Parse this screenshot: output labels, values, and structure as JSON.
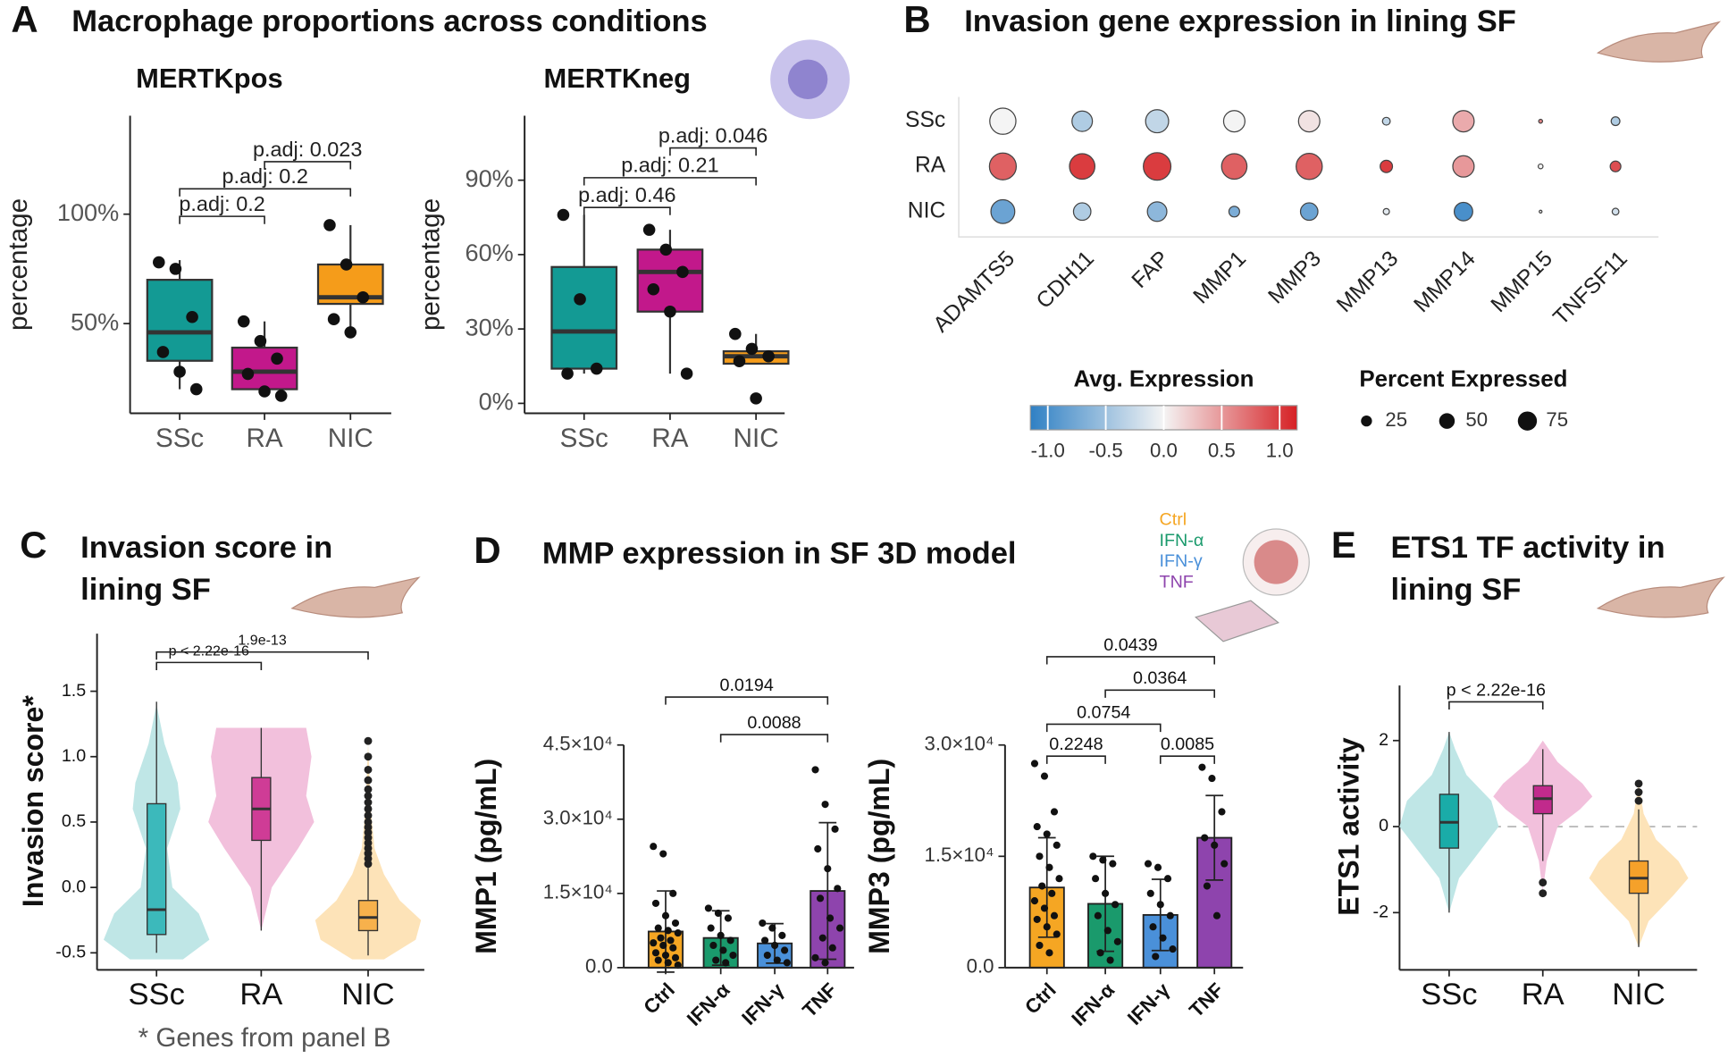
{
  "panels": [
    {
      "letter": "A",
      "title": "Macrophage proportions across conditions"
    },
    {
      "letter": "B",
      "title": "Invasion gene expression in lining SF"
    },
    {
      "letter": "C",
      "title": "Invasion score in lining SF"
    },
    {
      "letter": "D",
      "title": "MMP expression in SF 3D model"
    },
    {
      "letter": "E",
      "title": "ETS1 TF activity in lining SF"
    }
  ],
  "chart_data": [
    {
      "type": "box",
      "title": "MERTKpos",
      "ylabel": "percentage",
      "categories": [
        "SSc",
        "RA",
        "NIC"
      ],
      "colors": [
        "#139a94",
        "#c2188b",
        "#f59c1a"
      ],
      "boxes": [
        {
          "whislo": 20,
          "q1": 33,
          "median": 46,
          "q3": 70,
          "whishi": 79
        },
        {
          "whislo": 17,
          "q1": 20,
          "median": 28,
          "q3": 39,
          "whishi": 51
        },
        {
          "whislo": 46,
          "q1": 59,
          "median": 62,
          "q3": 77,
          "whishi": 95
        }
      ],
      "points": [
        [
          78,
          75,
          53,
          37,
          28,
          20
        ],
        [
          51,
          42,
          34,
          27,
          19,
          17
        ],
        [
          95,
          77,
          62,
          52,
          46
        ]
      ],
      "ylim": [
        9,
        145
      ],
      "yticks": [
        {
          "value": 50,
          "label": "50%"
        },
        {
          "value": 100,
          "label": "100%"
        }
      ],
      "annotations": [
        {
          "label": "p.adj: 0.2",
          "from": 0,
          "to": 1,
          "y": 99
        },
        {
          "label": "p.adj: 0.2",
          "from": 0,
          "to": 2,
          "y": 111.6
        },
        {
          "label": "p.adj: 0.023",
          "from": 1,
          "to": 2,
          "y": 124
        }
      ]
    },
    {
      "type": "box",
      "title": "MERTKneg",
      "ylabel": "percentage",
      "categories": [
        "SSc",
        "RA",
        "NIC"
      ],
      "colors": [
        "#139a94",
        "#c2188b",
        "#f59c1a"
      ],
      "boxes": [
        {
          "whislo": 12,
          "q1": 14,
          "median": 29,
          "q3": 55,
          "whishi": 76
        },
        {
          "whislo": 12,
          "q1": 37,
          "median": 53,
          "q3": 62,
          "whishi": 70
        },
        {
          "whislo": 16,
          "q1": 16,
          "median": 19,
          "q3": 21,
          "whishi": 28
        }
      ],
      "points": [
        [
          76,
          42,
          14,
          12
        ],
        [
          70,
          62,
          53,
          46,
          37,
          12
        ],
        [
          28,
          22,
          19,
          17,
          2
        ]
      ],
      "ylim": [
        -4,
        116
      ],
      "yticks": [
        {
          "value": 0,
          "label": "0%"
        },
        {
          "value": 30,
          "label": "30%"
        },
        {
          "value": 60,
          "label": "60%"
        },
        {
          "value": 90,
          "label": "90%"
        }
      ],
      "annotations": [
        {
          "label": "p.adj: 0.46",
          "from": 0,
          "to": 1,
          "y": 79
        },
        {
          "label": "p.adj: 0.21",
          "from": 0,
          "to": 2,
          "y": 91
        },
        {
          "label": "p.adj: 0.046",
          "from": 1,
          "to": 2,
          "y": 103
        }
      ]
    },
    {
      "type": "dot",
      "categories": [
        "ADAMTS5",
        "CDH11",
        "FAP",
        "MMP1",
        "MMP3",
        "MMP13",
        "MMP14",
        "MMP15",
        "TNFSF11"
      ],
      "series": [
        {
          "name": "SSc",
          "values": [
            0.0,
            -0.4,
            -0.3,
            0.0,
            0.1,
            -0.3,
            0.4,
            0.6,
            -0.4
          ],
          "sizes": [
            90,
            55,
            70,
            60,
            60,
            8,
            60,
            2,
            10
          ]
        },
        {
          "name": "RA",
          "values": [
            0.8,
            1.0,
            1.0,
            0.8,
            0.8,
            1.0,
            0.5,
            0.0,
            0.9
          ],
          "sizes": [
            95,
            85,
            100,
            85,
            90,
            20,
            60,
            3,
            15
          ]
        },
        {
          "name": "NIC",
          "values": [
            -0.8,
            -0.4,
            -0.6,
            -0.7,
            -0.8,
            -0.1,
            -1.0,
            0.0,
            -0.2
          ],
          "sizes": [
            75,
            40,
            50,
            15,
            40,
            5,
            45,
            1,
            6
          ]
        }
      ],
      "colors": [
        "#2f80c4",
        "#f4f4f4",
        "#d62024"
      ],
      "clim": [
        -1.15,
        1.15
      ],
      "color_title": "Avg. Expression",
      "cticks": [
        {
          "value": -1,
          "label": "-1.0"
        },
        -0.5,
        {
          "value": 0,
          "label": "0.0"
        },
        0.5,
        {
          "value": 1,
          "label": "1.0"
        }
      ],
      "size_title": "Percent Expressed",
      "size_ticks": [
        25,
        50,
        75
      ]
    },
    {
      "type": "violin",
      "ylabel": "Invasion score*",
      "note": "* Genes from panel B",
      "categories": [
        "SSc",
        "RA",
        "NIC"
      ],
      "violin_colors": [
        "#bfe6e6",
        "#f2c0dc",
        "#fde3b8"
      ],
      "colors": [
        "#3cb9bb",
        "#cf3c96",
        "#f7b14c"
      ],
      "violins": [
        {
          "y": [
            -0.55,
            -0.4,
            -0.2,
            0,
            0.3,
            0.6,
            0.8,
            1.1,
            1.4
          ],
          "width": [
            0.5,
            1,
            0.8,
            0.3,
            0.2,
            0.45,
            0.4,
            0.15,
            0
          ]
        },
        {
          "y": [
            -0.33,
            0,
            0.3,
            0.5,
            0.7,
            1.0,
            1.22
          ],
          "width": [
            0,
            0.2,
            0.7,
            1,
            0.85,
            0.95,
            0.85
          ]
        },
        {
          "y": [
            -0.55,
            -0.4,
            -0.25,
            -0.1,
            0.1,
            0.3,
            0.6,
            1.1
          ],
          "width": [
            0.3,
            0.9,
            1,
            0.6,
            0.3,
            0.12,
            0.05,
            0
          ]
        }
      ],
      "boxes": [
        {
          "whislo": -0.5,
          "q1": -0.36,
          "median": -0.17,
          "q3": 0.64,
          "whishi": 1.42
        },
        {
          "whislo": -0.33,
          "q1": 0.36,
          "median": 0.6,
          "q3": 0.84,
          "whishi": 1.22
        },
        {
          "whislo": -0.52,
          "q1": -0.33,
          "median": -0.23,
          "q3": -0.1,
          "whishi": 0.15
        }
      ],
      "outliers": [
        [],
        [],
        [
          0.18,
          0.22,
          0.26,
          0.3,
          0.34,
          0.38,
          0.42,
          0.46,
          0.5,
          0.55,
          0.6,
          0.65,
          0.7,
          0.75,
          0.82,
          0.9,
          1.0,
          1.12
        ]
      ],
      "ylim": [
        -0.63,
        1.94
      ],
      "yticks": [
        -0.5,
        {
          "value": 0,
          "label": "0.0"
        },
        0.5,
        {
          "value": 1,
          "label": "1.0"
        },
        1.5
      ],
      "annotations": [
        {
          "label": "p < 2.22e-16",
          "from": 0,
          "to": 1,
          "y": 1.72
        },
        {
          "label": "1.9e-13",
          "from": 0,
          "to": 2,
          "y": 1.8
        }
      ]
    },
    {
      "type": "bar",
      "ylabel": "MMP1 (pg/mL)",
      "categories": [
        "Ctrl",
        "IFN-α",
        "IFN-γ",
        "TNF"
      ],
      "colors": [
        "#f5a623",
        "#1a9a6c",
        "#4a90d9",
        "#8e44ad"
      ],
      "values": [
        7300,
        6000,
        4900,
        15500
      ],
      "errors": [
        8200,
        5500,
        4000,
        13800
      ],
      "points": [
        [
          24500,
          23000,
          15000,
          13000,
          10500,
          9000,
          8000,
          7500,
          7000,
          6000,
          5500,
          5000,
          4500,
          4000,
          3000,
          2500,
          2000,
          1500,
          1000,
          500
        ],
        [
          12000,
          11000,
          10000,
          8000,
          6500,
          5500,
          4500,
          3500,
          2500,
          1500,
          1000
        ],
        [
          9000,
          8000,
          6500,
          5500,
          4500,
          3500,
          2500,
          1500,
          1000
        ],
        [
          40000,
          33000,
          28000,
          24000,
          20000,
          16000,
          14000,
          10000,
          8000,
          6000,
          4000,
          2000,
          1000
        ]
      ],
      "ylim": [
        0,
        45000
      ],
      "yticks": [
        {
          "value": 0,
          "label": "0.0"
        },
        {
          "value": 15000,
          "label": "1.5×10⁴"
        },
        {
          "value": 30000,
          "label": "3.0×10⁴"
        },
        {
          "value": 45000,
          "label": "4.5×10⁴"
        }
      ],
      "annotations": [
        {
          "label": "0.0194",
          "from": 0,
          "to": 3,
          "y": 54700
        },
        {
          "label": "0.0088",
          "from": 1,
          "to": 3,
          "y": 47100
        }
      ]
    },
    {
      "type": "bar",
      "ylabel": "MMP3 (pg/mL)",
      "categories": [
        "Ctrl",
        "IFN-α",
        "IFN-γ",
        "TNF"
      ],
      "colors": [
        "#f5a623",
        "#1a9a6c",
        "#4a90d9",
        "#8e44ad"
      ],
      "values": [
        10800,
        8600,
        7100,
        17500
      ],
      "errors": [
        6700,
        6400,
        4800,
        5700
      ],
      "points": [
        [
          27500,
          25800,
          21000,
          19000,
          18000,
          16500,
          15000,
          13500,
          12000,
          11000,
          10000,
          9000,
          8000,
          7000,
          6500,
          5500,
          4500,
          3000,
          2000
        ],
        [
          15000,
          14500,
          14000,
          12000,
          10000,
          8500,
          7000,
          5000,
          3500,
          2000,
          1000
        ],
        [
          14000,
          13500,
          12000,
          10000,
          8500,
          7000,
          5500,
          4000,
          2500,
          1500
        ],
        [
          27000,
          25500,
          21000,
          17500,
          16500,
          14000,
          11000,
          7000
        ]
      ],
      "ylim": [
        0,
        30000
      ],
      "yticks": [
        {
          "value": 0,
          "label": "0.0"
        },
        {
          "value": 15000,
          "label": "1.5×10⁴"
        },
        {
          "value": 30000,
          "label": "3.0×10⁴"
        }
      ],
      "annotations": [
        {
          "label": "0.0439",
          "from": 0,
          "to": 3,
          "y": 41900
        },
        {
          "label": "0.0364",
          "from": 1,
          "to": 3,
          "y": 37400
        },
        {
          "label": "0.0754",
          "from": 0,
          "to": 2,
          "y": 32800
        },
        {
          "label": "0.2248",
          "from": 0,
          "to": 1,
          "y": 28500
        },
        {
          "label": "0.0085",
          "from": 2,
          "to": 3,
          "y": 28500
        }
      ]
    },
    {
      "type": "violin",
      "ylabel": "ETS1 activity",
      "categories": [
        "SSc",
        "RA",
        "NIC"
      ],
      "violin_colors": [
        "#bfe6e6",
        "#f2c0dc",
        "#fde3b8"
      ],
      "colors": [
        "#1aaca8",
        "#c12a8c",
        "#f5a12a"
      ],
      "violins": [
        {
          "y": [
            -2,
            -1.2,
            -0.6,
            0,
            0.6,
            1.2,
            1.8,
            2.2
          ],
          "width": [
            0,
            0.2,
            0.6,
            1,
            0.85,
            0.35,
            0.12,
            0
          ]
        },
        {
          "y": [
            -1.5,
            -0.8,
            0,
            0.4,
            0.7,
            1.0,
            1.5,
            2
          ],
          "width": [
            0,
            0.08,
            0.3,
            0.75,
            1,
            0.8,
            0.3,
            0
          ]
        },
        {
          "y": [
            -2.8,
            -2.2,
            -1.6,
            -1.2,
            -0.8,
            -0.3,
            0.3,
            1.0
          ],
          "width": [
            0,
            0.2,
            0.7,
            1,
            0.8,
            0.35,
            0.1,
            0
          ]
        }
      ],
      "boxes": [
        {
          "whislo": -2,
          "q1": -0.5,
          "median": 0.1,
          "q3": 0.75,
          "whishi": 2.2
        },
        {
          "whislo": -0.8,
          "q1": 0.3,
          "median": 0.65,
          "q3": 0.95,
          "whishi": 1.8
        },
        {
          "whislo": -2.8,
          "q1": -1.55,
          "median": -1.2,
          "q3": -0.8,
          "whishi": 0.4
        }
      ],
      "outliers": [
        [],
        [
          -1.3,
          -1.55
        ],
        [
          0.6,
          0.8,
          1.0
        ]
      ],
      "refline": 0,
      "ylim": [
        -3.33,
        3.28
      ],
      "yticks": [
        -2,
        0,
        2
      ],
      "annotations": [
        {
          "label": "p < 2.22e-16",
          "from": 0,
          "to": 1,
          "y": 2.9
        }
      ]
    }
  ]
}
